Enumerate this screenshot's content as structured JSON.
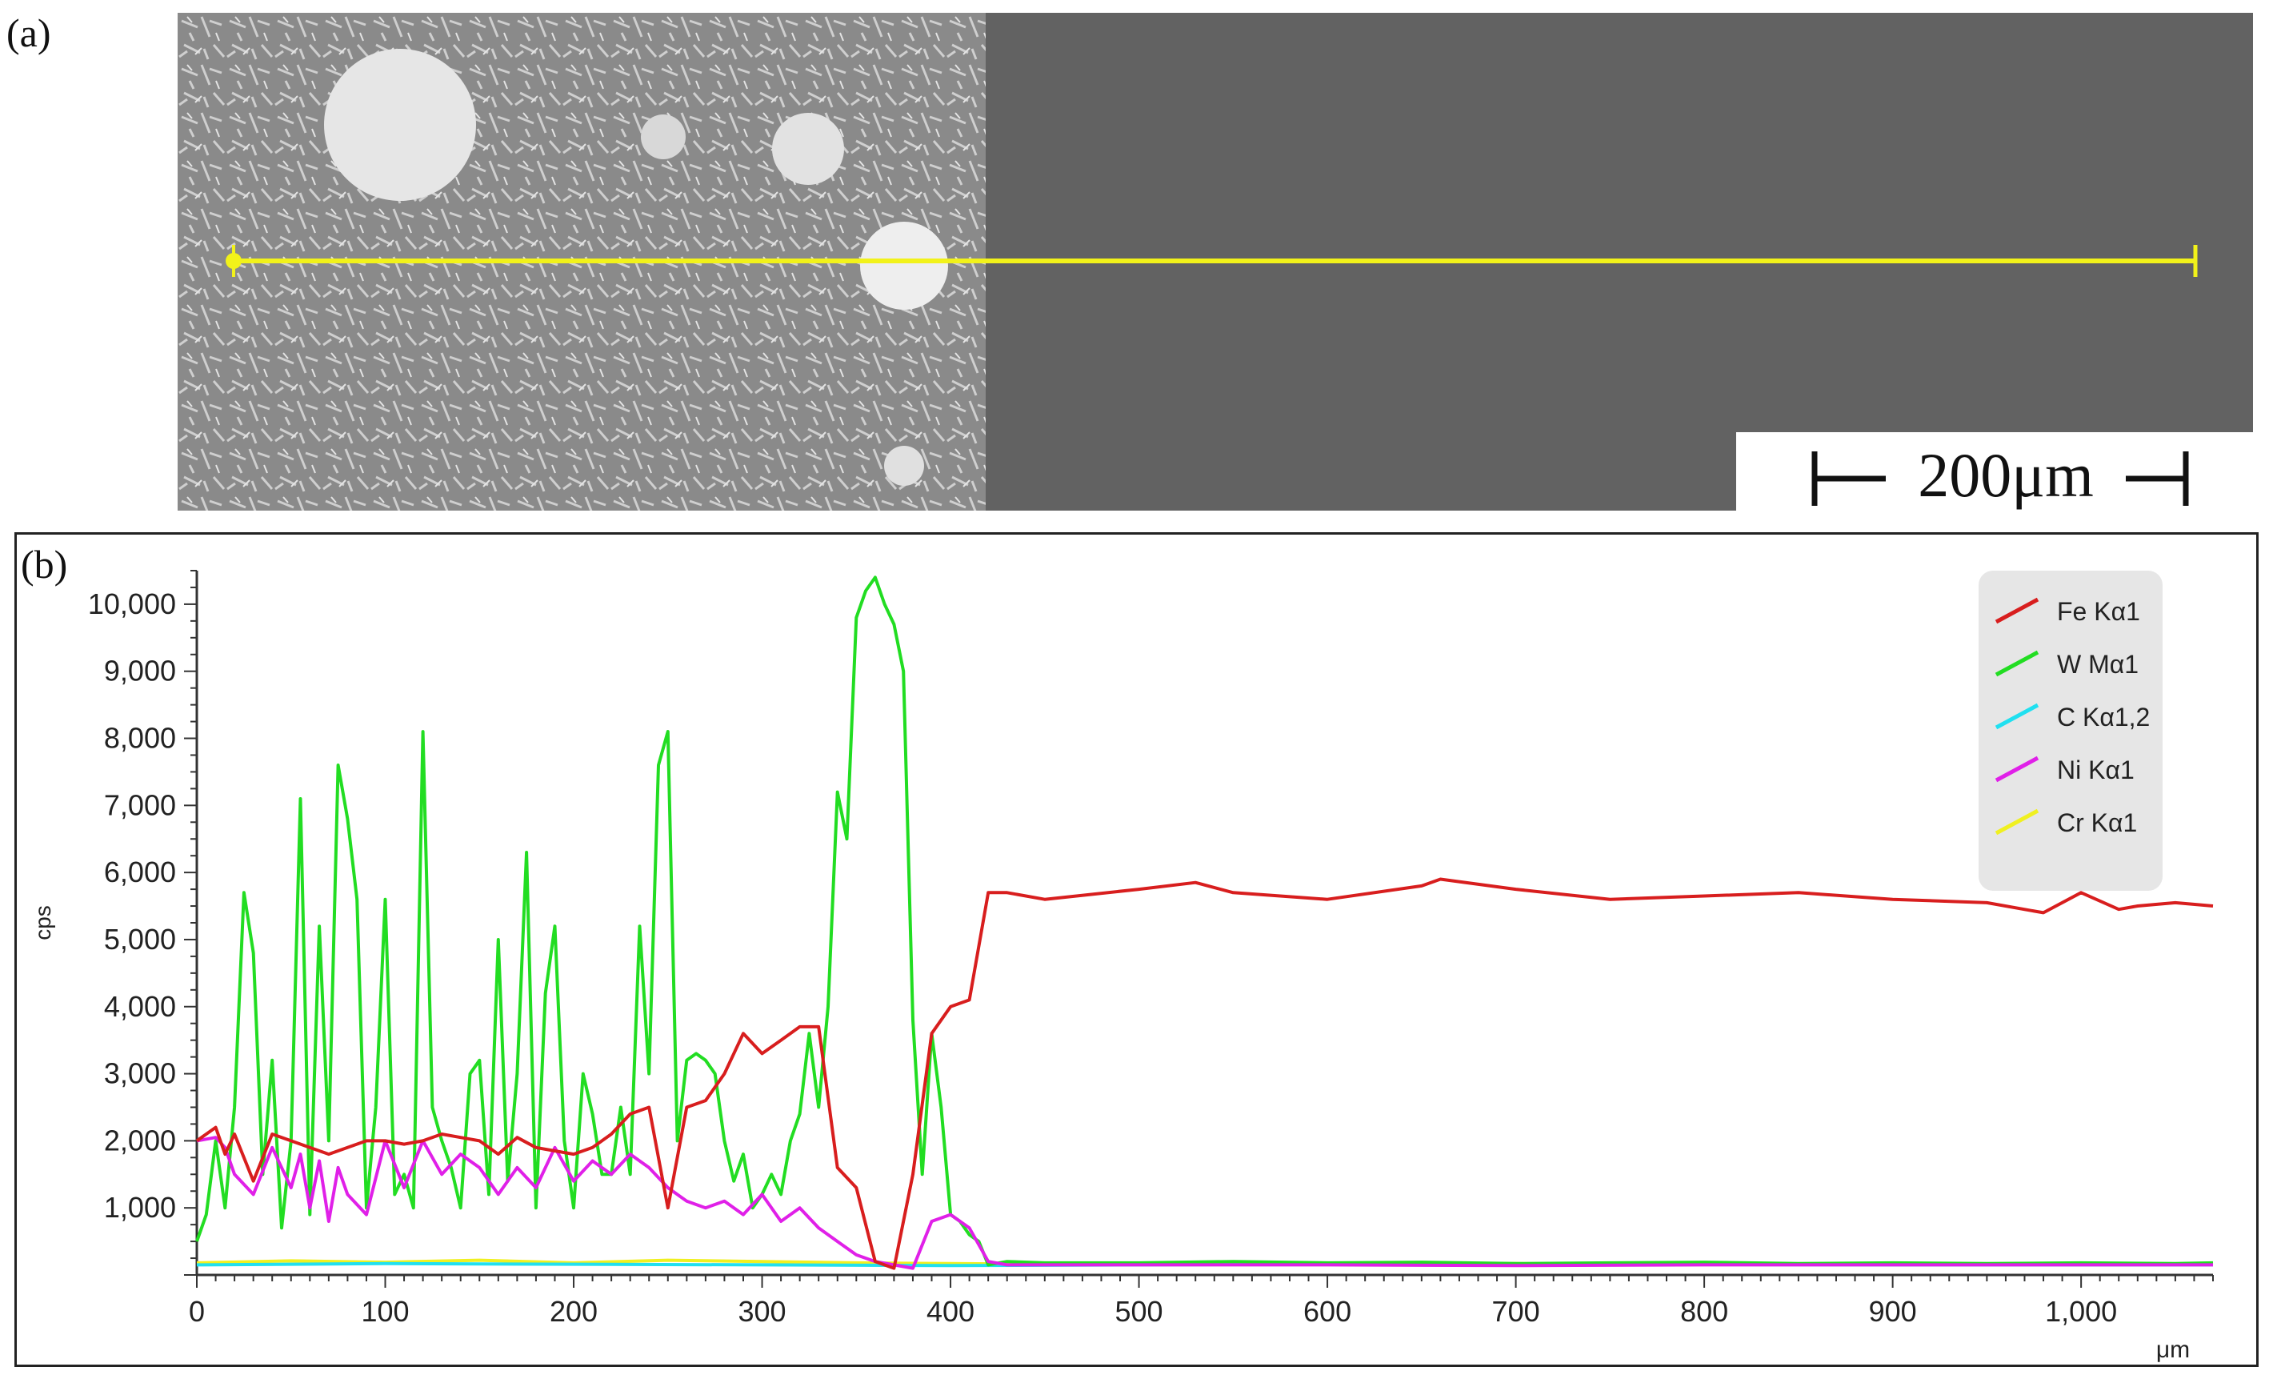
{
  "panel_a": {
    "label": "(a)",
    "scale_bar": "200μm"
  },
  "panel_b": {
    "label": "(b)"
  },
  "colors": {
    "fe": "#d81e1e",
    "w": "#22dd22",
    "c": "#20e0f0",
    "ni": "#e020e8",
    "cr": "#f0f020",
    "line_scan": "#f2f21a"
  },
  "chart_data": {
    "type": "line",
    "title": "",
    "xlabel": "μm",
    "ylabel": "cps",
    "xlim": [
      0,
      1070
    ],
    "ylim": [
      0,
      10500
    ],
    "x_ticks": [
      "0",
      "100",
      "200",
      "300",
      "400",
      "500",
      "600",
      "700",
      "800",
      "900",
      "1,000"
    ],
    "y_ticks": [
      "1,000",
      "2,000",
      "3,000",
      "4,000",
      "5,000",
      "6,000",
      "7,000",
      "8,000",
      "9,000",
      "10,000"
    ],
    "legend_position": "top-right",
    "series": [
      {
        "name": "Fe Kα1",
        "color": "#d81e1e",
        "x": [
          0,
          10,
          15,
          20,
          30,
          40,
          50,
          60,
          70,
          80,
          90,
          100,
          110,
          120,
          130,
          140,
          150,
          160,
          170,
          180,
          190,
          200,
          210,
          220,
          230,
          240,
          250,
          260,
          270,
          280,
          290,
          300,
          310,
          320,
          330,
          340,
          350,
          360,
          370,
          380,
          390,
          400,
          410,
          420,
          430,
          450,
          500,
          530,
          550,
          600,
          650,
          660,
          700,
          750,
          800,
          850,
          900,
          950,
          980,
          1000,
          1020,
          1030,
          1050,
          1070
        ],
        "y": [
          2000,
          2200,
          1800,
          2100,
          1400,
          2100,
          2000,
          1900,
          1800,
          1900,
          2000,
          2000,
          1950,
          2000,
          2100,
          2050,
          2000,
          1800,
          2050,
          1900,
          1850,
          1800,
          1900,
          2100,
          2400,
          2500,
          1000,
          2500,
          2600,
          3000,
          3600,
          3300,
          3500,
          3700,
          3700,
          1600,
          1300,
          200,
          100,
          1500,
          3600,
          4000,
          4100,
          5700,
          5700,
          5600,
          5750,
          5850,
          5700,
          5600,
          5800,
          5900,
          5750,
          5600,
          5650,
          5700,
          5600,
          5550,
          5400,
          5700,
          5450,
          5500,
          5550,
          5500
        ]
      },
      {
        "name": "W Mα1",
        "color": "#22dd22",
        "x": [
          0,
          5,
          10,
          15,
          20,
          25,
          30,
          35,
          40,
          45,
          50,
          55,
          60,
          65,
          70,
          75,
          80,
          85,
          90,
          95,
          100,
          105,
          110,
          115,
          120,
          125,
          130,
          135,
          140,
          145,
          150,
          155,
          160,
          165,
          170,
          175,
          180,
          185,
          190,
          195,
          200,
          205,
          210,
          215,
          220,
          225,
          230,
          235,
          240,
          245,
          250,
          255,
          260,
          265,
          270,
          275,
          280,
          285,
          290,
          295,
          300,
          305,
          310,
          315,
          320,
          325,
          330,
          335,
          340,
          345,
          350,
          355,
          360,
          365,
          370,
          375,
          380,
          385,
          390,
          395,
          400,
          405,
          410,
          415,
          420,
          430,
          450,
          500,
          550,
          600,
          650,
          700,
          750,
          800,
          850,
          900,
          950,
          1000,
          1050,
          1070
        ],
        "y": [
          500,
          900,
          2000,
          1000,
          2500,
          5700,
          4800,
          1500,
          3200,
          700,
          2000,
          7100,
          900,
          5200,
          2000,
          7600,
          6800,
          5600,
          1000,
          2500,
          5600,
          1200,
          1500,
          1000,
          8100,
          2500,
          2000,
          1600,
          1000,
          3000,
          3200,
          1200,
          5000,
          1400,
          3000,
          6300,
          1000,
          4200,
          5200,
          2000,
          1000,
          3000,
          2400,
          1500,
          1500,
          2500,
          1500,
          5200,
          3000,
          7600,
          8100,
          2000,
          3200,
          3300,
          3200,
          3000,
          2000,
          1400,
          1800,
          1000,
          1200,
          1500,
          1200,
          2000,
          2400,
          3600,
          2500,
          4000,
          7200,
          6500,
          9800,
          10200,
          10400,
          10000,
          9700,
          9000,
          3800,
          1500,
          3600,
          2500,
          900,
          800,
          600,
          500,
          150,
          200,
          180,
          180,
          200,
          180,
          190,
          170,
          180,
          190,
          170,
          180,
          170,
          180,
          170,
          180
        ]
      },
      {
        "name": "C Kα1,2",
        "color": "#20e0f0",
        "x": [
          0,
          100,
          200,
          300,
          400,
          500,
          600,
          700,
          800,
          900,
          1000,
          1070
        ],
        "y": [
          150,
          170,
          160,
          150,
          140,
          150,
          160,
          150,
          155,
          150,
          150,
          150
        ]
      },
      {
        "name": "Ni Kα1",
        "color": "#e020e8",
        "x": [
          0,
          10,
          15,
          20,
          30,
          40,
          50,
          55,
          60,
          65,
          70,
          75,
          80,
          90,
          100,
          110,
          120,
          130,
          140,
          150,
          160,
          170,
          180,
          190,
          200,
          210,
          220,
          230,
          240,
          250,
          260,
          270,
          280,
          290,
          300,
          310,
          320,
          330,
          340,
          350,
          360,
          370,
          380,
          390,
          400,
          410,
          420,
          430,
          500,
          600,
          700,
          800,
          900,
          1000,
          1070
        ],
        "y": [
          2000,
          2050,
          1900,
          1500,
          1200,
          1900,
          1300,
          1800,
          1000,
          1700,
          800,
          1600,
          1200,
          900,
          2000,
          1300,
          2000,
          1500,
          1800,
          1600,
          1200,
          1600,
          1300,
          1900,
          1400,
          1700,
          1500,
          1800,
          1600,
          1300,
          1100,
          1000,
          1100,
          900,
          1200,
          800,
          1000,
          700,
          500,
          300,
          200,
          150,
          100,
          800,
          900,
          700,
          200,
          150,
          150,
          150,
          140,
          150,
          150,
          150,
          150
        ]
      },
      {
        "name": "Cr Kα1",
        "color": "#f0f020",
        "x": [
          0,
          50,
          100,
          150,
          200,
          250,
          300,
          350,
          400,
          450,
          500,
          600,
          700,
          800,
          900,
          1000,
          1070
        ],
        "y": [
          180,
          210,
          190,
          220,
          180,
          220,
          200,
          180,
          170,
          160,
          170,
          160,
          170,
          160,
          165,
          160,
          165
        ]
      }
    ]
  }
}
